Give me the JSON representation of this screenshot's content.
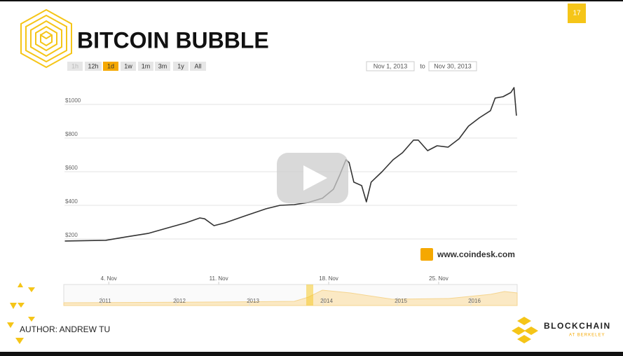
{
  "slide": {
    "title": "BITCOIN BUBBLE",
    "page_number": "17",
    "author": "AUTHOR: ANDREW TU",
    "org_name": "BLOCKCHAIN",
    "org_sub": "AT BERKELEY"
  },
  "range_selector": {
    "buttons": [
      "1h",
      "12h",
      "1d",
      "1w",
      "1m",
      "3m",
      "1y",
      "All"
    ],
    "selected": "1d",
    "from": "Nov 1, 2013",
    "to_word": "to",
    "to": "Nov 30, 2013"
  },
  "source": "www.coindesk.com",
  "navigator": {
    "years": [
      "2011",
      "2012",
      "2013",
      "2014",
      "2015",
      "2016"
    ]
  },
  "chart_data": {
    "type": "line",
    "color": "#333333",
    "grid": true,
    "x": [
      1.2,
      3.8,
      5.1,
      6.5,
      7.8,
      8.9,
      9.8,
      10.1,
      10.7,
      11.4,
      12.7,
      14.0,
      14.9,
      15.8,
      16.7,
      17.6,
      18.3,
      18.7,
      19.1,
      19.3,
      19.6,
      20.1,
      20.4,
      20.7,
      21.4,
      22.1,
      22.7,
      23.4,
      23.7,
      24.3,
      24.9,
      25.6,
      26.3,
      26.9,
      27.6,
      28.3,
      28.6,
      29.1,
      29.6,
      29.8,
      29.95
    ],
    "values": [
      188,
      192,
      212,
      233,
      267,
      296,
      325,
      320,
      279,
      296,
      338,
      379,
      400,
      404,
      417,
      442,
      496,
      579,
      671,
      654,
      538,
      517,
      421,
      538,
      600,
      671,
      713,
      788,
      788,
      725,
      754,
      746,
      796,
      871,
      921,
      963,
      1038,
      1046,
      1071,
      1100,
      933
    ],
    "xlim": [
      1,
      30
    ],
    "xticks": [
      {
        "value": 4,
        "label": "4. Nov"
      },
      {
        "value": 11,
        "label": "11. Nov"
      },
      {
        "value": 18,
        "label": "18. Nov"
      },
      {
        "value": 25,
        "label": "25. Nov"
      }
    ],
    "ylim": [
      180,
      1180
    ],
    "yticks": [
      {
        "value": 200,
        "label": "$200"
      },
      {
        "value": 400,
        "label": "$400"
      },
      {
        "value": 600,
        "label": "$600"
      },
      {
        "value": 800,
        "label": "$800"
      },
      {
        "value": 1000,
        "label": "$1000"
      }
    ]
  }
}
